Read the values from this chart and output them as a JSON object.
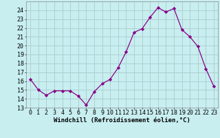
{
  "x": [
    0,
    1,
    2,
    3,
    4,
    5,
    6,
    7,
    8,
    9,
    10,
    11,
    12,
    13,
    14,
    15,
    16,
    17,
    18,
    19,
    20,
    21,
    22,
    23
  ],
  "y": [
    16.2,
    15.0,
    14.4,
    14.9,
    14.9,
    14.9,
    14.3,
    13.3,
    14.8,
    15.7,
    16.2,
    17.5,
    19.3,
    21.5,
    21.9,
    23.2,
    24.3,
    23.8,
    24.2,
    21.8,
    21.0,
    19.9,
    17.4,
    15.4
  ],
  "line_color": "#880088",
  "marker": "D",
  "marker_size": 2.2,
  "bg_color": "#c8eef0",
  "grid_color": "#aacccc",
  "xlabel": "Windchill (Refroidissement éolien,°C)",
  "xlabel_fontsize": 6.5,
  "tick_fontsize": 6.0,
  "ylim": [
    13,
    25
  ],
  "yticks": [
    13,
    14,
    15,
    16,
    17,
    18,
    19,
    20,
    21,
    22,
    23,
    24
  ],
  "xticks": [
    0,
    1,
    2,
    3,
    4,
    5,
    6,
    7,
    8,
    9,
    10,
    11,
    12,
    13,
    14,
    15,
    16,
    17,
    18,
    19,
    20,
    21,
    22,
    23
  ]
}
